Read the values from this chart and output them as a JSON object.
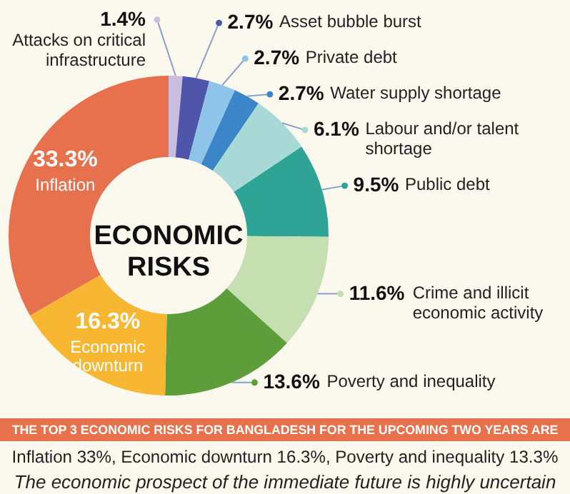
{
  "chart_data": {
    "type": "donut",
    "title": "ECONOMIC RISKS",
    "subtitle": "THE TOP 3 ECONOMIC RISKS FOR BANGLADESH FOR THE UPCOMING TWO YEARS ARE",
    "annotations": [
      "Inflation 33%, Economic downturn 16.3%, Poverty and inequality 13.3%",
      "The economic prospect of the immediate future is highly uncertain"
    ],
    "categories": [
      "Attacks on critical infrastructure",
      "Asset bubble burst",
      "Private debt",
      "Water supply shortage",
      "Labour and/or talent shortage",
      "Public debt",
      "Crime and illicit economic activity",
      "Poverty and inequality",
      "Economic downturn",
      "Inflation"
    ],
    "values": [
      1.4,
      2.7,
      2.7,
      2.7,
      6.1,
      9.5,
      11.6,
      13.6,
      16.3,
      33.3
    ],
    "value_labels": [
      "1.4%",
      "2.7%",
      "2.7%",
      "2.7%",
      "6.1%",
      "9.5%",
      "11.6%",
      "13.6%",
      "16.3%",
      "33.3%"
    ],
    "colors": [
      "#c9bde0",
      "#4f55a8",
      "#8ec3ea",
      "#3b86c9",
      "#a9d9d6",
      "#2fa396",
      "#c5dfb0",
      "#5e9e3a",
      "#f7b733",
      "#e8714d"
    ]
  }
}
